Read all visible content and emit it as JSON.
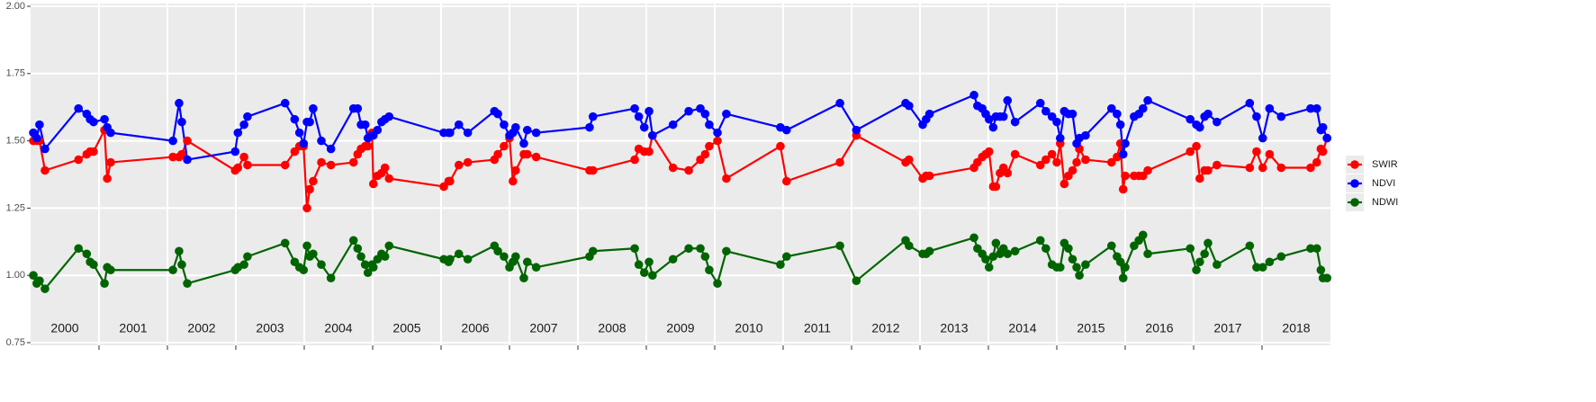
{
  "chart_data": {
    "type": "line",
    "x": [
      2000.04,
      2000.09,
      2000.13,
      2000.21,
      2000.7,
      2000.82,
      2000.87,
      2000.92,
      2001.08,
      2001.12,
      2001.17,
      2002.08,
      2002.17,
      2002.21,
      2002.29,
      2002.99,
      2003.03,
      2003.12,
      2003.17,
      2003.72,
      2003.86,
      2003.93,
      2003.99,
      2004.04,
      2004.08,
      2004.13,
      2004.25,
      2004.39,
      2004.72,
      2004.78,
      2004.83,
      2004.89,
      2004.93,
      2004.99,
      2005.01,
      2005.07,
      2005.13,
      2005.18,
      2005.24,
      2006.04,
      2006.11,
      2006.13,
      2006.26,
      2006.39,
      2006.78,
      2006.83,
      2006.92,
      2007.0,
      2007.05,
      2007.09,
      2007.21,
      2007.26,
      2007.39,
      2008.17,
      2008.22,
      2008.83,
      2008.89,
      2008.97,
      2009.04,
      2009.09,
      2009.39,
      2009.62,
      2009.79,
      2009.86,
      2009.92,
      2010.04,
      2010.17,
      2010.96,
      2011.05,
      2011.83,
      2012.07,
      2012.79,
      2012.84,
      2013.04,
      2013.09,
      2013.14,
      2013.79,
      2013.84,
      2013.91,
      2013.96,
      2014.01,
      2014.07,
      2014.11,
      2014.17,
      2014.22,
      2014.28,
      2014.39,
      2014.76,
      2014.84,
      2014.93,
      2015.0,
      2015.05,
      2015.11,
      2015.17,
      2015.23,
      2015.29,
      2015.33,
      2015.42,
      2015.8,
      2015.88,
      2015.93,
      2015.97,
      2016.0,
      2016.13,
      2016.2,
      2016.26,
      2016.33,
      2016.95,
      2017.04,
      2017.09,
      2017.16,
      2017.21,
      2017.34,
      2017.82,
      2017.92,
      2018.01,
      2018.11,
      2018.28,
      2018.71,
      2018.8,
      2018.86,
      2018.89,
      2018.95
    ],
    "series": [
      {
        "name": "SWIR",
        "color": "#ff0000",
        "values": [
          1.5,
          1.5,
          1.5,
          1.39,
          1.43,
          1.45,
          1.46,
          1.46,
          1.54,
          1.36,
          1.42,
          1.44,
          1.44,
          1.45,
          1.5,
          1.39,
          1.4,
          1.44,
          1.41,
          1.41,
          1.46,
          1.48,
          1.48,
          1.25,
          1.32,
          1.35,
          1.42,
          1.41,
          1.42,
          1.45,
          1.47,
          1.48,
          1.48,
          1.53,
          1.34,
          1.37,
          1.38,
          1.4,
          1.36,
          1.33,
          1.35,
          1.35,
          1.41,
          1.42,
          1.43,
          1.45,
          1.48,
          1.51,
          1.35,
          1.39,
          1.45,
          1.45,
          1.44,
          1.39,
          1.39,
          1.43,
          1.47,
          1.46,
          1.46,
          1.52,
          1.4,
          1.39,
          1.43,
          1.45,
          1.48,
          1.5,
          1.36,
          1.48,
          1.35,
          1.42,
          1.52,
          1.42,
          1.43,
          1.36,
          1.37,
          1.37,
          1.4,
          1.42,
          1.44,
          1.45,
          1.46,
          1.33,
          1.33,
          1.38,
          1.4,
          1.38,
          1.45,
          1.41,
          1.43,
          1.45,
          1.42,
          1.49,
          1.34,
          1.37,
          1.39,
          1.42,
          1.47,
          1.43,
          1.42,
          1.44,
          1.49,
          1.32,
          1.37,
          1.37,
          1.37,
          1.37,
          1.39,
          1.46,
          1.48,
          1.36,
          1.39,
          1.39,
          1.41,
          1.4,
          1.46,
          1.4,
          1.45,
          1.4,
          1.4,
          1.42,
          1.47,
          1.46,
          1.51
        ]
      },
      {
        "name": "NDVI",
        "color": "#0000ff",
        "values": [
          1.53,
          1.51,
          1.56,
          1.47,
          1.62,
          1.6,
          1.58,
          1.57,
          1.58,
          1.55,
          1.53,
          1.5,
          1.64,
          1.57,
          1.43,
          1.46,
          1.53,
          1.56,
          1.59,
          1.64,
          1.58,
          1.53,
          1.49,
          1.57,
          1.57,
          1.62,
          1.5,
          1.47,
          1.62,
          1.62,
          1.56,
          1.56,
          1.51,
          1.52,
          1.52,
          1.54,
          1.57,
          1.58,
          1.59,
          1.53,
          1.53,
          1.53,
          1.56,
          1.53,
          1.61,
          1.6,
          1.56,
          1.52,
          1.53,
          1.55,
          1.49,
          1.54,
          1.53,
          1.55,
          1.59,
          1.62,
          1.59,
          1.55,
          1.61,
          1.52,
          1.56,
          1.61,
          1.62,
          1.6,
          1.56,
          1.53,
          1.6,
          1.55,
          1.54,
          1.64,
          1.54,
          1.64,
          1.63,
          1.56,
          1.58,
          1.6,
          1.67,
          1.63,
          1.62,
          1.6,
          1.58,
          1.55,
          1.59,
          1.59,
          1.59,
          1.65,
          1.57,
          1.64,
          1.61,
          1.59,
          1.57,
          1.51,
          1.61,
          1.6,
          1.6,
          1.49,
          1.51,
          1.52,
          1.62,
          1.6,
          1.56,
          1.45,
          1.49,
          1.59,
          1.6,
          1.62,
          1.65,
          1.58,
          1.56,
          1.55,
          1.59,
          1.6,
          1.57,
          1.64,
          1.59,
          1.51,
          1.62,
          1.59,
          1.62,
          1.62,
          1.54,
          1.55,
          1.51
        ]
      },
      {
        "name": "NDWI",
        "color": "#006400",
        "values": [
          1.0,
          0.97,
          0.98,
          0.95,
          1.1,
          1.08,
          1.05,
          1.04,
          0.97,
          1.03,
          1.02,
          1.02,
          1.09,
          1.04,
          0.97,
          1.02,
          1.03,
          1.04,
          1.07,
          1.12,
          1.05,
          1.03,
          1.02,
          1.11,
          1.07,
          1.08,
          1.04,
          0.99,
          1.13,
          1.1,
          1.07,
          1.04,
          1.01,
          1.04,
          1.03,
          1.06,
          1.08,
          1.07,
          1.11,
          1.06,
          1.05,
          1.06,
          1.08,
          1.06,
          1.11,
          1.09,
          1.07,
          1.03,
          1.05,
          1.07,
          0.99,
          1.05,
          1.03,
          1.07,
          1.09,
          1.1,
          1.04,
          1.01,
          1.05,
          1.0,
          1.06,
          1.1,
          1.1,
          1.07,
          1.02,
          0.97,
          1.09,
          1.04,
          1.07,
          1.11,
          0.98,
          1.13,
          1.11,
          1.08,
          1.08,
          1.09,
          1.14,
          1.1,
          1.08,
          1.06,
          1.03,
          1.07,
          1.12,
          1.08,
          1.1,
          1.08,
          1.09,
          1.13,
          1.1,
          1.04,
          1.03,
          1.03,
          1.12,
          1.1,
          1.06,
          1.03,
          1.0,
          1.04,
          1.11,
          1.07,
          1.05,
          0.99,
          1.03,
          1.11,
          1.13,
          1.15,
          1.08,
          1.1,
          1.02,
          1.05,
          1.08,
          1.12,
          1.04,
          1.11,
          1.03,
          1.03,
          1.05,
          1.07,
          1.1,
          1.1,
          1.02,
          0.99,
          0.99
        ]
      }
    ],
    "xlim": [
      2000,
      2019
    ],
    "ylim": [
      0.75,
      2.0
    ],
    "yticks": [
      {
        "value": 0.75,
        "label": "0.75"
      },
      {
        "value": 1.0,
        "label": "1.00"
      },
      {
        "value": 1.25,
        "label": "1.25"
      },
      {
        "value": 1.5,
        "label": "1.50"
      },
      {
        "value": 1.75,
        "label": "1.75"
      },
      {
        "value": 2.0,
        "label": "2.00"
      }
    ],
    "year_breaks": [
      2001,
      2002,
      2003,
      2004,
      2005,
      2006,
      2007,
      2008,
      2009,
      2010,
      2011,
      2012,
      2013,
      2014,
      2015,
      2016,
      2017,
      2018
    ],
    "xticks": [
      {
        "value": 2000.5,
        "label": "2000"
      },
      {
        "value": 2001.5,
        "label": "2001"
      },
      {
        "value": 2002.5,
        "label": "2002"
      },
      {
        "value": 2003.5,
        "label": "2003"
      },
      {
        "value": 2004.5,
        "label": "2004"
      },
      {
        "value": 2005.5,
        "label": "2005"
      },
      {
        "value": 2006.5,
        "label": "2006"
      },
      {
        "value": 2007.5,
        "label": "2007"
      },
      {
        "value": 2008.5,
        "label": "2008"
      },
      {
        "value": 2009.5,
        "label": "2009"
      },
      {
        "value": 2010.5,
        "label": "2010"
      },
      {
        "value": 2011.5,
        "label": "2011"
      },
      {
        "value": 2012.5,
        "label": "2012"
      },
      {
        "value": 2013.5,
        "label": "2013"
      },
      {
        "value": 2014.5,
        "label": "2014"
      },
      {
        "value": 2015.5,
        "label": "2015"
      },
      {
        "value": 2016.5,
        "label": "2016"
      },
      {
        "value": 2017.5,
        "label": "2017"
      },
      {
        "value": 2018.5,
        "label": "2018"
      }
    ],
    "grid": true,
    "legend": "right"
  }
}
